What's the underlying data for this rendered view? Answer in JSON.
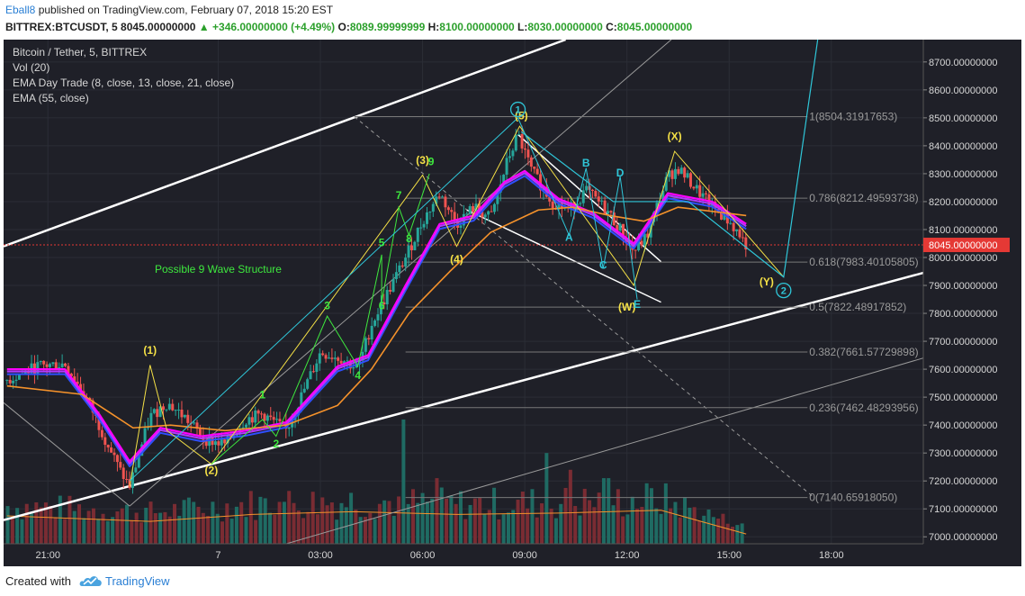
{
  "header": {
    "author": "Eball8",
    "published_text": "published on TradingView.com, February 07, 2018 15:20 EST",
    "symbol_line": "BITTREX:BTCUSDT, 5",
    "last_price": "8045.00000000",
    "change": "+346.00000000 (+4.49%)",
    "ohlc": [
      {
        "label": "O:",
        "value": "8089.99999999"
      },
      {
        "label": "H:",
        "value": "8100.00000000"
      },
      {
        "label": "L:",
        "value": "8030.00000000"
      },
      {
        "label": "C:",
        "value": "8045.00000000"
      }
    ]
  },
  "legend": {
    "title": "Bitcoin / Tether, 5, BITTREX",
    "items": [
      "Vol (20)",
      "EMA Day Trade (8, close, 13, close, 21, close)",
      "EMA (55, close)"
    ]
  },
  "footer": {
    "created_with": "Created with",
    "brand": "TradingView"
  },
  "colors": {
    "background": "#1f2028",
    "up_candle": "#26a69a",
    "down_candle": "#ef5350",
    "ema8": "#ff00ff",
    "ema13": "#b03cff",
    "ema21": "#2f4fff",
    "ema55": "#f5922b",
    "wave_yellow": "#f5e146",
    "wave_green": "#3ee83e",
    "wave_cyan": "#2fc6d8",
    "price_tag": "#e53935"
  },
  "chart_data": {
    "type": "candlestick",
    "symbol": "BITTREX:BTCUSDT",
    "interval": "5",
    "y_axis": {
      "ticks": [
        7000,
        7100,
        7200,
        7300,
        7400,
        7500,
        7600,
        7700,
        7800,
        7900,
        8000,
        8100,
        8200,
        8300,
        8400,
        8500,
        8600,
        8700
      ],
      "tick_labels": [
        "7000.00000000",
        "7100.00000000",
        "7200.00000000",
        "7300.00000000",
        "7400.00000000",
        "7500.00000000",
        "7600.00000000",
        "7700.00000000",
        "7800.00000000",
        "7900.00000000",
        "8000.00000000",
        "8100.00000000",
        "8200.00000000",
        "8300.00000000",
        "8400.00000000",
        "8500.00000000",
        "8600.00000000",
        "8700.00000000"
      ],
      "range": [
        6975,
        8780
      ]
    },
    "x_axis": {
      "ticks": [
        0,
        5,
        8,
        11,
        14,
        17,
        20,
        23
      ],
      "tick_labels": [
        "21:00",
        "7",
        "03:00",
        "06:00",
        "09:00",
        "12:00",
        "15:00",
        "18:00"
      ],
      "range": [
        -1.3,
        25.7
      ]
    },
    "price_path": [
      [
        -1.2,
        7560
      ],
      [
        -0.3,
        7610
      ],
      [
        0.5,
        7620
      ],
      [
        1.2,
        7480
      ],
      [
        2.1,
        7240
      ],
      [
        2.4,
        7180
      ],
      [
        3.0,
        7430
      ],
      [
        3.5,
        7480
      ],
      [
        4.0,
        7430
      ],
      [
        4.6,
        7350
      ],
      [
        5.2,
        7330
      ],
      [
        5.8,
        7420
      ],
      [
        6.3,
        7440
      ],
      [
        7.0,
        7380
      ],
      [
        7.5,
        7520
      ],
      [
        8.0,
        7660
      ],
      [
        8.6,
        7640
      ],
      [
        9.1,
        7600
      ],
      [
        9.5,
        7760
      ],
      [
        10.0,
        7880
      ],
      [
        10.5,
        8000
      ],
      [
        11.0,
        8130
      ],
      [
        11.5,
        8230
      ],
      [
        12.0,
        8120
      ],
      [
        12.5,
        8180
      ],
      [
        13.0,
        8140
      ],
      [
        13.5,
        8350
      ],
      [
        13.8,
        8440
      ],
      [
        14.2,
        8310
      ],
      [
        14.8,
        8200
      ],
      [
        15.3,
        8170
      ],
      [
        15.8,
        8240
      ],
      [
        16.4,
        8170
      ],
      [
        16.8,
        8100
      ],
      [
        17.2,
        8020
      ],
      [
        17.6,
        8080
      ],
      [
        17.9,
        8190
      ],
      [
        18.2,
        8290
      ],
      [
        18.5,
        8320
      ],
      [
        19.0,
        8250
      ],
      [
        19.5,
        8180
      ],
      [
        20.0,
        8130
      ],
      [
        20.3,
        8080
      ],
      [
        20.5,
        8045
      ]
    ],
    "series": [
      {
        "name": "EMA Day Trade (8, close, 13, close, 21, close)",
        "style": "ribbon",
        "values": [
          [
            -1.2,
            7600
          ],
          [
            0.5,
            7600
          ],
          [
            1.5,
            7440
          ],
          [
            2.4,
            7270
          ],
          [
            3.3,
            7390
          ],
          [
            4.5,
            7360
          ],
          [
            5.8,
            7380
          ],
          [
            7.0,
            7410
          ],
          [
            8.5,
            7610
          ],
          [
            9.4,
            7650
          ],
          [
            10.5,
            7900
          ],
          [
            11.5,
            8120
          ],
          [
            12.5,
            8150
          ],
          [
            13.4,
            8270
          ],
          [
            14.0,
            8310
          ],
          [
            15.0,
            8210
          ],
          [
            16.0,
            8160
          ],
          [
            17.2,
            8050
          ],
          [
            18.2,
            8230
          ],
          [
            19.5,
            8200
          ],
          [
            20.5,
            8120
          ]
        ]
      },
      {
        "name": "EMA (55, close)",
        "values": [
          [
            -1.2,
            7540
          ],
          [
            1.0,
            7510
          ],
          [
            2.5,
            7390
          ],
          [
            3.6,
            7400
          ],
          [
            5.2,
            7380
          ],
          [
            7.0,
            7400
          ],
          [
            8.5,
            7470
          ],
          [
            9.5,
            7600
          ],
          [
            10.6,
            7800
          ],
          [
            11.8,
            7950
          ],
          [
            13.0,
            8090
          ],
          [
            14.4,
            8170
          ],
          [
            15.4,
            8180
          ],
          [
            16.5,
            8150
          ],
          [
            17.5,
            8130
          ],
          [
            18.5,
            8180
          ],
          [
            20.5,
            8150
          ]
        ]
      }
    ],
    "volume": {
      "baseline": [
        [
          -1.2,
          7075
        ],
        [
          3.0,
          7055
        ],
        [
          6.0,
          7080
        ],
        [
          9.0,
          7090
        ],
        [
          12.0,
          7080
        ],
        [
          15.0,
          7085
        ],
        [
          18.0,
          7095
        ],
        [
          20.5,
          7010
        ]
      ],
      "spikes": [
        [
          6.8,
          7125
        ],
        [
          10.4,
          7420
        ],
        [
          11.4,
          7210
        ],
        [
          14.7,
          7300
        ],
        [
          15.3,
          7240
        ],
        [
          16.4,
          7210
        ]
      ]
    },
    "fibonacci": [
      {
        "level": "1",
        "label": "1(8504.31917653)",
        "price": 8504.31917653
      },
      {
        "level": "0.786",
        "label": "0.786(8212.49593738)",
        "price": 8212.49593738
      },
      {
        "level": "0.618",
        "label": "0.618(7983.40105805)",
        "price": 7983.40105805
      },
      {
        "level": "0.5",
        "label": "0.5(7822.48917852)",
        "price": 7822.48917852
      },
      {
        "level": "0.382",
        "label": "0.382(7661.57729898)",
        "price": 7661.57729898
      },
      {
        "level": "0.236",
        "label": "0.236(7462.48293956)",
        "price": 7462.48293956
      },
      {
        "level": "0",
        "label": "0(7140.65918050)",
        "price": 7140.6591805
      }
    ],
    "current_price": {
      "value": 8045.0,
      "label": "8045.00000000"
    },
    "wave_labels": [
      {
        "text": "(1)",
        "x": 3.0,
        "y": 7655,
        "color": "yellow"
      },
      {
        "text": "(2)",
        "x": 4.8,
        "y": 7225,
        "color": "yellow"
      },
      {
        "text": "(3)",
        "x": 11.0,
        "y": 8335,
        "color": "yellow"
      },
      {
        "text": "(4)",
        "x": 12.0,
        "y": 7980,
        "color": "yellow"
      },
      {
        "text": "(5)",
        "x": 13.9,
        "y": 8495,
        "color": "yellow"
      },
      {
        "text": "(X)",
        "x": 18.4,
        "y": 8420,
        "color": "yellow"
      },
      {
        "text": "(W)",
        "x": 17.0,
        "y": 7810,
        "color": "yellow"
      },
      {
        "text": "(Y)",
        "x": 21.1,
        "y": 7900,
        "color": "yellow"
      },
      {
        "text": "1",
        "x": 6.3,
        "y": 7495,
        "color": "green"
      },
      {
        "text": "2",
        "x": 6.7,
        "y": 7320,
        "color": "green"
      },
      {
        "text": "3",
        "x": 8.2,
        "y": 7815,
        "color": "green"
      },
      {
        "text": "4",
        "x": 9.1,
        "y": 7565,
        "color": "green"
      },
      {
        "text": "5",
        "x": 9.8,
        "y": 8040,
        "color": "green"
      },
      {
        "text": "6",
        "x": 9.8,
        "y": 7815,
        "color": "green"
      },
      {
        "text": "7",
        "x": 10.3,
        "y": 8210,
        "color": "green"
      },
      {
        "text": "8",
        "x": 10.6,
        "y": 8055,
        "color": "green"
      },
      {
        "text": "9",
        "x": 11.25,
        "y": 8330,
        "color": "green"
      },
      {
        "text": "A",
        "x": 15.3,
        "y": 8060,
        "color": "cyan"
      },
      {
        "text": "B",
        "x": 15.8,
        "y": 8325,
        "color": "cyan"
      },
      {
        "text": "C",
        "x": 16.3,
        "y": 7960,
        "color": "cyan"
      },
      {
        "text": "D",
        "x": 16.8,
        "y": 8290,
        "color": "cyan"
      },
      {
        "text": "E",
        "x": 17.3,
        "y": 7820,
        "color": "cyan"
      }
    ],
    "circled_labels": [
      {
        "text": "1",
        "x": 13.8,
        "y": 8530,
        "color": "cyan"
      },
      {
        "text": "2",
        "x": 21.6,
        "y": 7882,
        "color": "cyan"
      }
    ],
    "annotations": [
      {
        "text": "Possible 9 Wave Structure",
        "x": 5.0,
        "y": 7945,
        "color": "green"
      }
    ]
  }
}
